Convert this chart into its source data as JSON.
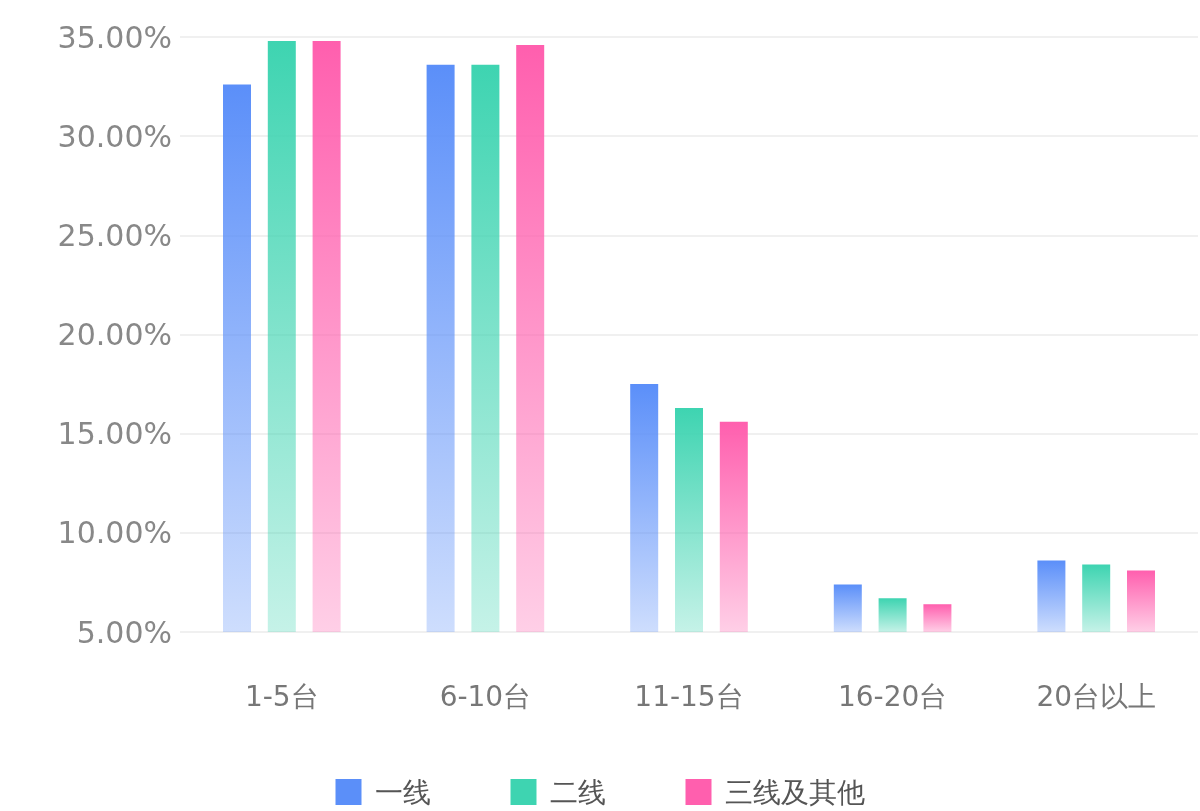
{
  "chart_data": {
    "type": "bar",
    "categories": [
      "1-5台",
      "6-10台",
      "11-15台",
      "16-20台",
      "20台以上"
    ],
    "series": [
      {
        "name": "一线",
        "color": "#5b8ff9",
        "values": [
          32.6,
          33.6,
          17.5,
          7.4,
          8.6
        ]
      },
      {
        "name": "二线",
        "color": "#3ed4b1",
        "values": [
          34.8,
          33.6,
          16.3,
          6.7,
          8.4
        ]
      },
      {
        "name": "三线及其他",
        "color": "#ff5fae",
        "values": [
          34.8,
          34.6,
          15.6,
          6.4,
          8.1
        ]
      }
    ],
    "ylim": [
      5,
      35
    ],
    "yticks": [
      {
        "value": 5,
        "label": "5.00%"
      },
      {
        "value": 10,
        "label": "10.00%"
      },
      {
        "value": 15,
        "label": "15.00%"
      },
      {
        "value": 20,
        "label": "20.00%"
      },
      {
        "value": 25,
        "label": "25.00%"
      },
      {
        "value": 30,
        "label": "30.00%"
      },
      {
        "value": 35,
        "label": "35.00%"
      }
    ],
    "grid": "y",
    "legend": "bottom"
  }
}
